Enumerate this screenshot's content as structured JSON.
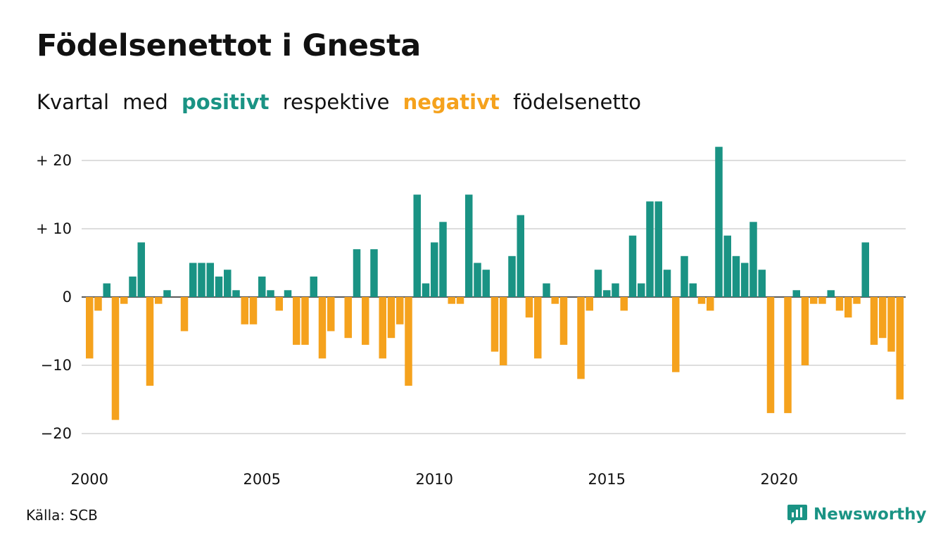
{
  "title": "Födelsenettot i Gnesta",
  "subtitle": {
    "part1": "Kvartal",
    "part2": "med",
    "positive": "positivt",
    "part3": "respektive",
    "negative": "negativt",
    "part4": "födelsenetto"
  },
  "source": "Källa: SCB",
  "brand": "Newsworthy",
  "colors": {
    "positive": "#1a9384",
    "negative": "#f5a21d",
    "grid": "#dddddd",
    "text": "#111111"
  },
  "chart_data": {
    "type": "bar",
    "x_start": 2000,
    "periods_per_year": 4,
    "values": [
      -9,
      -2,
      2,
      -18,
      -1,
      3,
      8,
      -13,
      -1,
      1,
      0,
      -5,
      5,
      5,
      5,
      3,
      4,
      1,
      -4,
      -4,
      3,
      1,
      -2,
      1,
      -7,
      -7,
      3,
      -9,
      -5,
      0,
      -6,
      7,
      -7,
      7,
      -9,
      -6,
      -4,
      -13,
      15,
      2,
      8,
      11,
      -1,
      -1,
      15,
      5,
      4,
      -8,
      -10,
      6,
      12,
      -3,
      -9,
      2,
      -1,
      -7,
      0,
      -12,
      -2,
      4,
      1,
      2,
      -2,
      9,
      2,
      14,
      14,
      4,
      -11,
      6,
      2,
      -1,
      -2,
      22,
      9,
      6,
      5,
      11,
      4,
      -17,
      0,
      -17,
      1,
      -10,
      -1,
      -1,
      1,
      -2,
      -3,
      -1,
      8,
      -7,
      -6,
      -8,
      -15
    ],
    "y_ticks": [
      20,
      10,
      0,
      -10,
      -20
    ],
    "y_tick_labels": [
      "+ 20",
      "+ 10",
      "0",
      "−10",
      "−20"
    ],
    "x_ticks": [
      2000,
      2005,
      2010,
      2015,
      2020
    ],
    "ylim": [
      -22,
      22
    ],
    "grid": "horizontal"
  }
}
